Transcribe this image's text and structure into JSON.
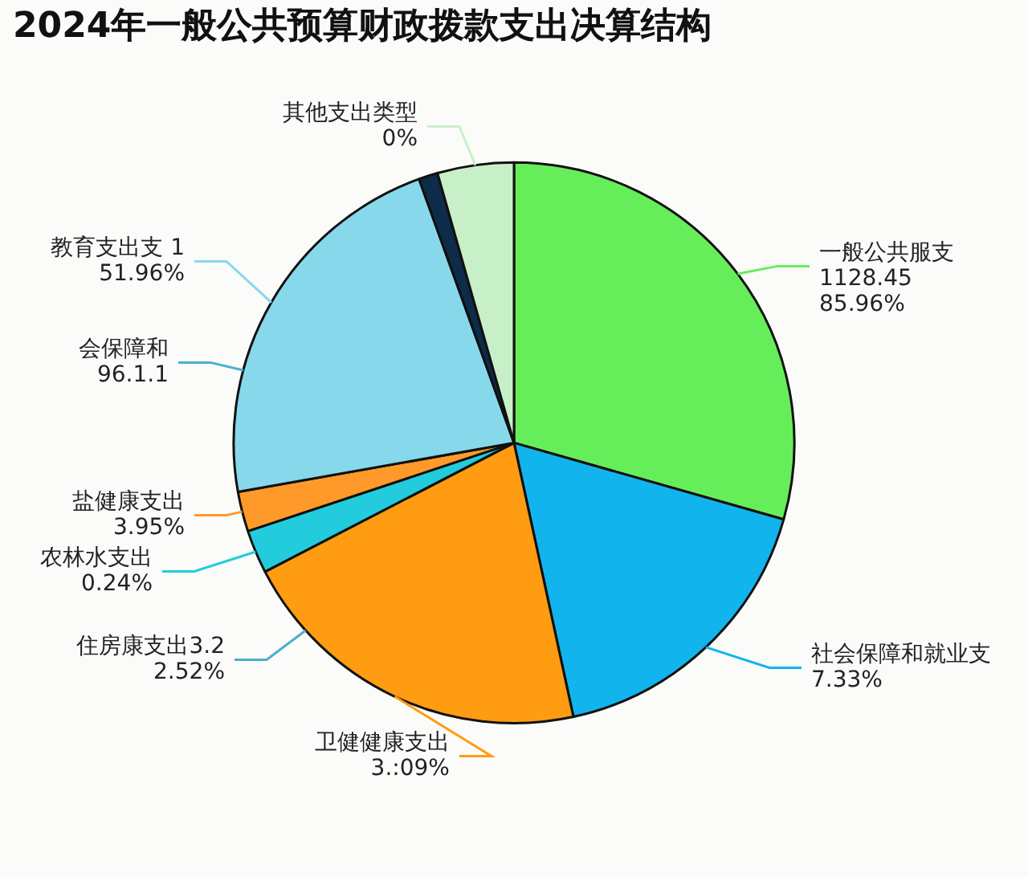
{
  "chart_data": {
    "type": "pie",
    "title": "2024年一般公共预算财政拨款支出决算结构",
    "categories": [
      "一般公共服支\n1128.45\n85.96%",
      "社会保障和就业支\n7.33%",
      "卫健健康支出\n3.:09%",
      "农林水支出\n0.24%",
      "盐健康支出\n3.95%",
      "教育支出支 1\n51.96%",
      null,
      "其他支出类型\n0%"
    ],
    "values": [
      29.4,
      17.2,
      20.8,
      2.5,
      2.3,
      22.3,
      1.1,
      4.4
    ],
    "colors": [
      "#66ee5a",
      "#12b4ee",
      "#ff9c12",
      "#22ccdc",
      "#ff9a2a",
      "#88d8ec",
      "#0d2c4a",
      "#c8f0c8"
    ],
    "annotations": [
      "会保障和\n96.1.1",
      "住房康支出3.2\n2.52%"
    ],
    "legend": false
  }
}
